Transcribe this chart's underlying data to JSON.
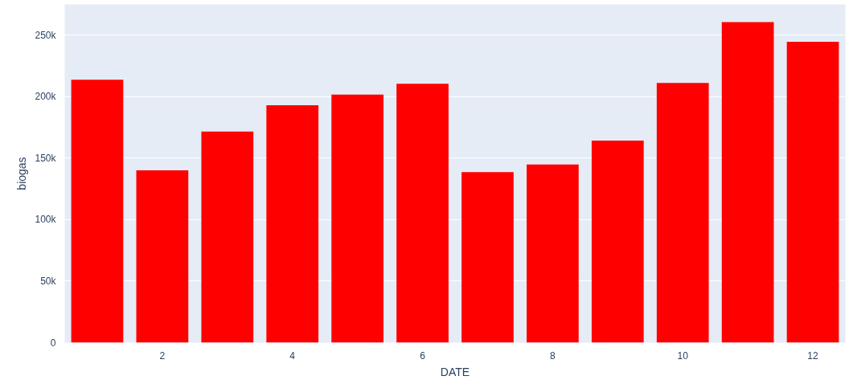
{
  "chart_data": {
    "type": "bar",
    "xlabel": "DATE",
    "ylabel": "biogas",
    "x": [
      1,
      2,
      3,
      4,
      5,
      6,
      7,
      8,
      9,
      10,
      11,
      12
    ],
    "values": [
      213800,
      140100,
      171600,
      193000,
      201700,
      210500,
      138700,
      144800,
      164200,
      211100,
      260700,
      244600
    ],
    "color": "#ff0000",
    "xlim": [
      0.5,
      12.5
    ],
    "xticks": [
      2,
      4,
      6,
      8,
      10,
      12
    ],
    "ylim": [
      0,
      275000
    ],
    "yticks": [
      0,
      {
        "value": 50000,
        "label": "50k"
      },
      {
        "value": 100000,
        "label": "100k"
      },
      {
        "value": 150000,
        "label": "150k"
      },
      {
        "value": 200000,
        "label": "200k"
      },
      {
        "value": 250000,
        "label": "250k"
      }
    ],
    "grid": "y"
  }
}
